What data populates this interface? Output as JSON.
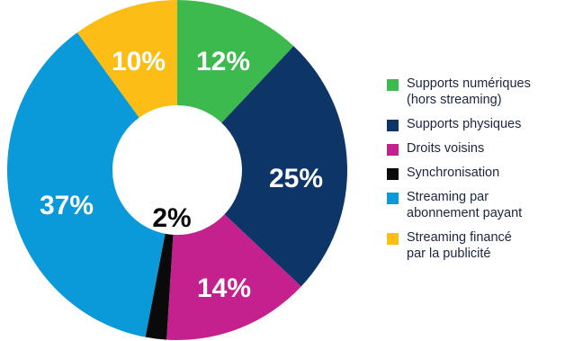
{
  "chart_data": {
    "type": "pie",
    "donut": true,
    "slices": [
      {
        "name": "Supports numériques\n(hors streaming)",
        "value": 12,
        "label": "12%",
        "color": "#3dba4e"
      },
      {
        "name": "Supports physiques",
        "value": 25,
        "label": "25%",
        "color": "#0d3567"
      },
      {
        "name": "Droits voisins",
        "value": 14,
        "label": "14%",
        "color": "#c4218f"
      },
      {
        "name": "Synchronisation",
        "value": 2,
        "label": "2%",
        "color": "#0a0a0a"
      },
      {
        "name": "Streaming par\nabonnement payant",
        "value": 37,
        "label": "37%",
        "color": "#0a9ad9"
      },
      {
        "name": "Streaming financé\npar la publicité",
        "value": 10,
        "label": "10%",
        "color": "#fbbd16"
      }
    ],
    "legend_position": "right"
  }
}
